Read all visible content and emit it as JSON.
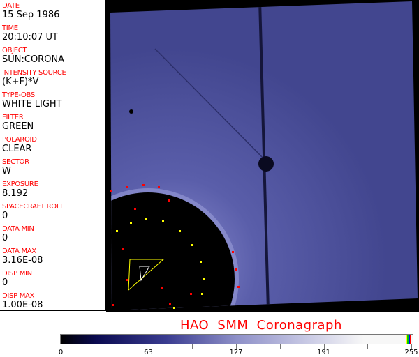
{
  "fields": [
    {
      "label": "DATE",
      "value": "15 Sep 1986"
    },
    {
      "label": "TIME",
      "value": "20:10:07 UT"
    },
    {
      "label": "OBJECT",
      "value": "SUN:CORONA"
    },
    {
      "label": "INTENSITY SOURCE",
      "value": "(K+F)*V"
    },
    {
      "label": "TYPE-OBS",
      "value": "WHITE LIGHT"
    },
    {
      "label": "FILTER",
      "value": "GREEN"
    },
    {
      "label": "POLAROID",
      "value": "CLEAR"
    },
    {
      "label": "SECTOR",
      "value": "W"
    },
    {
      "label": "EXPOSURE",
      "value": "8.192"
    },
    {
      "label": "SPACECRAFT ROLL",
      "value": "0"
    },
    {
      "label": "DATA MIN",
      "value": "0"
    },
    {
      "label": "DATA MAX",
      "value": "3.16E-08"
    },
    {
      "label": "DISP MIN",
      "value": "0"
    },
    {
      "label": "DISP MAX",
      "value": "1.00E-08"
    }
  ],
  "title": "HAO  SMM  Coronagraph",
  "colorbar": {
    "ticks": [
      "0",
      "63",
      "127",
      "191",
      "255"
    ],
    "min": 0,
    "max": 255,
    "end_colors": [
      "#ffff00",
      "#00c000",
      "#0000ff",
      "#ff0000"
    ]
  },
  "colors": {
    "label": "#ff0000",
    "image_blue": "#4a4e9c",
    "overlay_red": "#ff0000",
    "overlay_yellow": "#ffff00"
  }
}
